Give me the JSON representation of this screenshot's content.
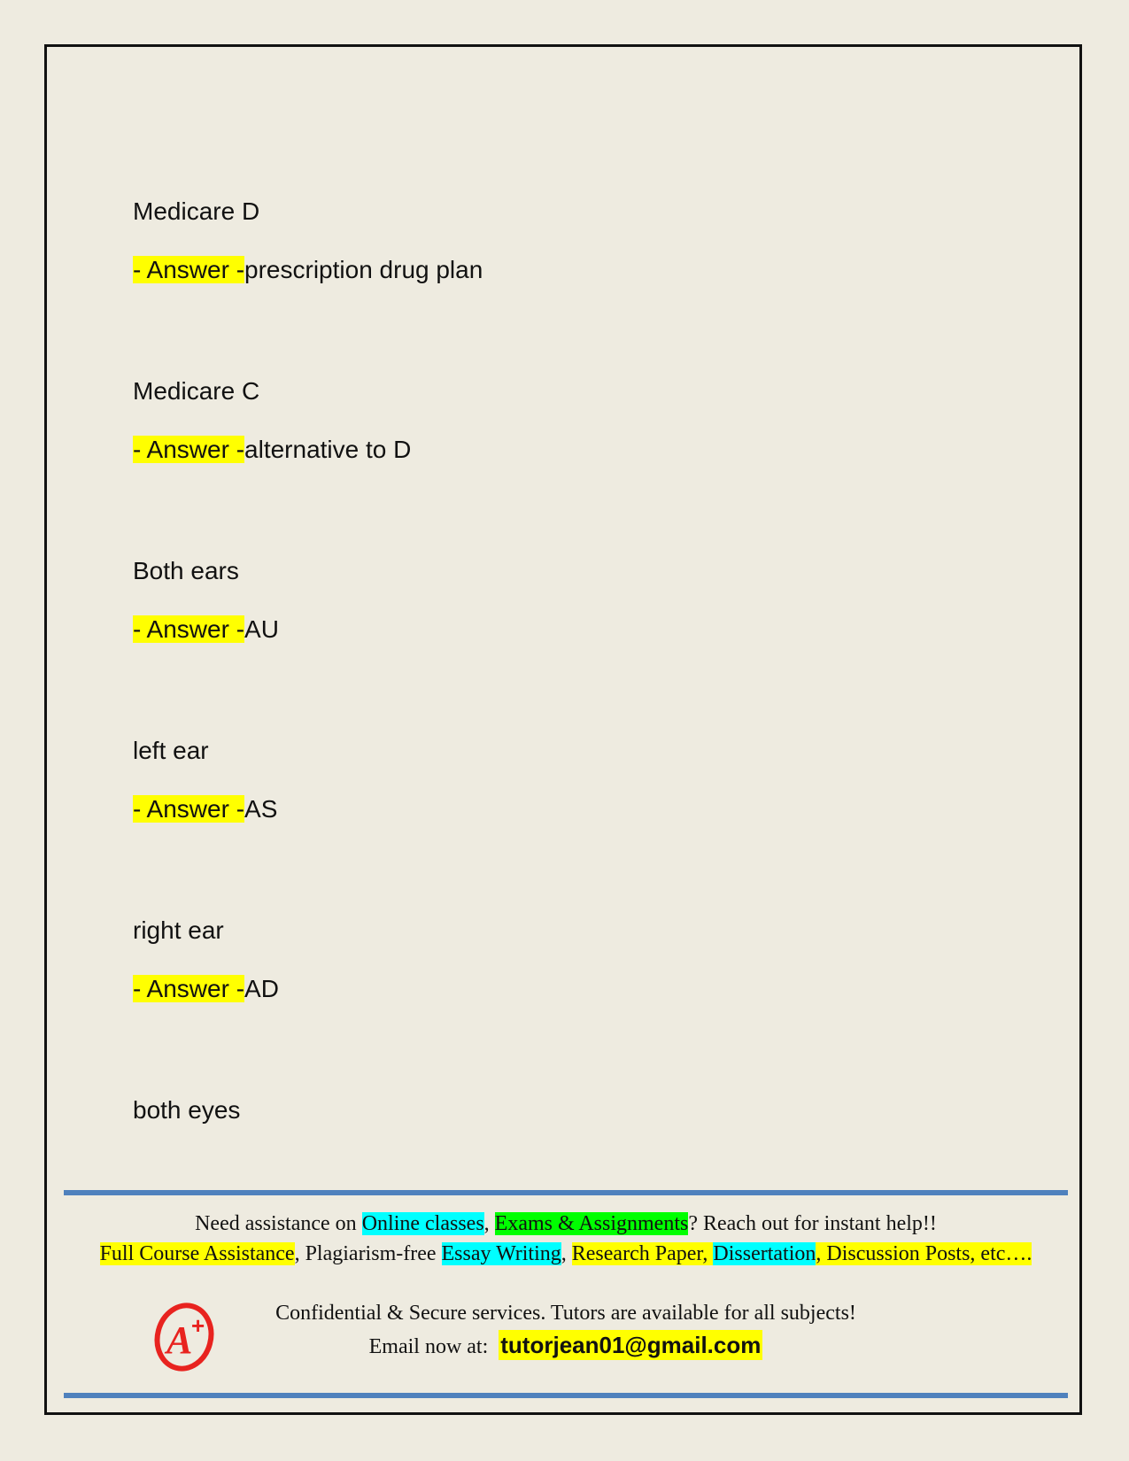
{
  "qa": [
    {
      "q": "Medicare D",
      "prefix": "- Answer -",
      "a": "prescription drug plan"
    },
    {
      "q": "Medicare C",
      "prefix": "- Answer -",
      "a": "alternative to D"
    },
    {
      "q": "Both ears",
      "prefix": "- Answer -",
      "a": "AU"
    },
    {
      "q": "left ear",
      "prefix": "- Answer -",
      "a": "AS"
    },
    {
      "q": "right ear",
      "prefix": "- Answer -",
      "a": "AD"
    },
    {
      "q": "both eyes"
    }
  ],
  "footer": {
    "l1": [
      "Need assistance on ",
      "Online classes",
      ", ",
      "Exams & Assignments",
      "? Reach out for instant help!!"
    ],
    "l2": [
      "Full Course Assistance",
      ", Plagiarism-free ",
      "Essay Writing",
      ", ",
      "Research Paper, ",
      "Dissertation",
      ", Discussion Posts, etc…."
    ],
    "l3": "Confidential & Secure services. Tutors are available for all subjects!",
    "l4": "Email now at:",
    "email": "tutorjean01@gmail.com",
    "logo_text": "A+"
  },
  "colors": {
    "highlight": "#ffff00",
    "cyan": "#00ffff",
    "green": "#00ff00",
    "rule": "#4f81bd",
    "logo": "#e8231f"
  }
}
